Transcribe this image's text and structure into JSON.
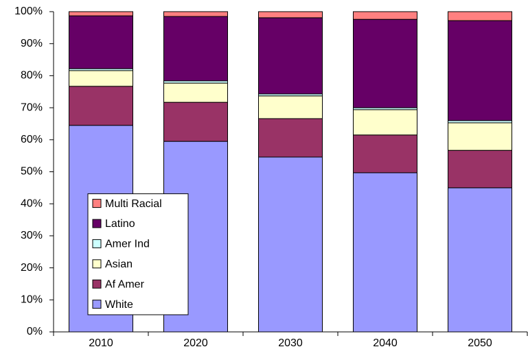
{
  "chart_data": {
    "type": "stacked_bar",
    "categories": [
      "2010",
      "2020",
      "2030",
      "2040",
      "2050"
    ],
    "series": [
      {
        "name": "White",
        "color": "#9999ff",
        "values": [
          64.5,
          59.5,
          54.6,
          49.7,
          45.0
        ]
      },
      {
        "name": "Af Amer",
        "color": "#993366",
        "values": [
          12.2,
          12.2,
          12.0,
          11.8,
          11.7
        ]
      },
      {
        "name": "Asian",
        "color": "#ffffcc",
        "values": [
          4.9,
          6.0,
          7.1,
          7.9,
          8.6
        ]
      },
      {
        "name": "Amer Ind",
        "color": "#ccffff",
        "values": [
          0.6,
          0.7,
          0.6,
          0.6,
          0.7
        ]
      },
      {
        "name": "Latino",
        "color": "#660066",
        "values": [
          16.5,
          20.1,
          23.8,
          27.6,
          31.2
        ]
      },
      {
        "name": "Multi Racial",
        "color": "#ff8080",
        "values": [
          1.3,
          1.5,
          1.9,
          2.4,
          2.8
        ]
      }
    ],
    "ylim": [
      0,
      100
    ],
    "yticks": [
      {
        "value": 0,
        "label": "0%"
      },
      {
        "value": 10,
        "label": "10%"
      },
      {
        "value": 20,
        "label": "20%"
      },
      {
        "value": 30,
        "label": "30%"
      },
      {
        "value": 40,
        "label": "40%"
      },
      {
        "value": 50,
        "label": "50%"
      },
      {
        "value": 60,
        "label": "60%"
      },
      {
        "value": 70,
        "label": "70%"
      },
      {
        "value": 80,
        "label": "80%"
      },
      {
        "value": 90,
        "label": "90%"
      },
      {
        "value": 100,
        "label": "100%"
      }
    ],
    "legend": "lower left",
    "grid": false
  }
}
